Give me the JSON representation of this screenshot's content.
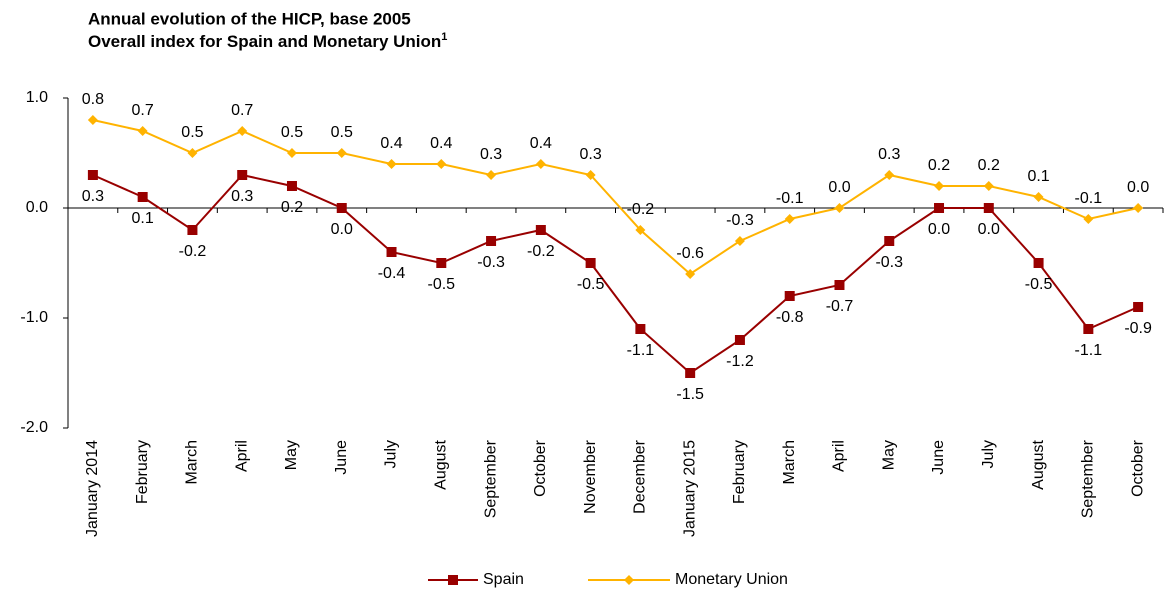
{
  "chart_data": {
    "type": "line",
    "title": [
      "Annual evolution of the HICP, base 2005",
      "Overall index for Spain and Monetary Union"
    ],
    "title_note": "1",
    "categories": [
      "January 2014",
      "February",
      "March",
      "April",
      "May",
      "June",
      "July",
      "August",
      "September",
      "October",
      "November",
      "December",
      "January 2015",
      "February",
      "March",
      "April",
      "May",
      "June",
      "July",
      "August",
      "September",
      "October"
    ],
    "series": [
      {
        "name": "Spain",
        "color": "#990000",
        "marker": "square",
        "values": [
          0.3,
          0.1,
          -0.2,
          0.3,
          0.2,
          0.0,
          -0.4,
          -0.5,
          -0.3,
          -0.2,
          -0.5,
          -1.1,
          -1.5,
          -1.2,
          -0.8,
          -0.7,
          -0.3,
          0.0,
          0.0,
          -0.5,
          -1.1,
          -0.9
        ],
        "value_labels": [
          "0.3",
          "0.1",
          "-0.2",
          "0.3",
          "0.2",
          "0.0",
          "-0.4",
          "-0.5",
          "-0.3",
          "-0.2",
          "-0.5",
          "-1.1",
          "-1.5",
          "-1.2",
          "-0.8",
          "-0.7",
          "-0.3",
          "0.0",
          "0.0",
          "-0.5",
          "-1.1",
          "-0.9"
        ]
      },
      {
        "name": "Monetary Union",
        "color": "#FFB300",
        "marker": "diamond",
        "values": [
          0.8,
          0.7,
          0.5,
          0.7,
          0.5,
          0.5,
          0.4,
          0.4,
          0.3,
          0.4,
          0.3,
          -0.2,
          -0.6,
          -0.3,
          -0.1,
          0.0,
          0.3,
          0.2,
          0.2,
          0.1,
          -0.1,
          0.0
        ],
        "value_labels": [
          "0.8",
          "0.7",
          "0.5",
          "0.7",
          "0.5",
          "0.5",
          "0.4",
          "0.4",
          "0.3",
          "0.4",
          "0.3",
          "-0.2",
          "-0.6",
          "-0.3",
          "-0.1",
          "0.0",
          "0.3",
          "0.2",
          "0.2",
          "0.1",
          "-0.1",
          "0.0"
        ]
      }
    ],
    "ylim": [
      -2.0,
      1.0
    ],
    "yticks": [
      {
        "value": -2.0,
        "label": "-2.0"
      },
      {
        "value": -1.0,
        "label": "-1.0"
      },
      {
        "value": 0.0,
        "label": "0.0"
      },
      {
        "value": 1.0,
        "label": "1.0"
      }
    ],
    "grid": false,
    "legend": "bottom"
  }
}
